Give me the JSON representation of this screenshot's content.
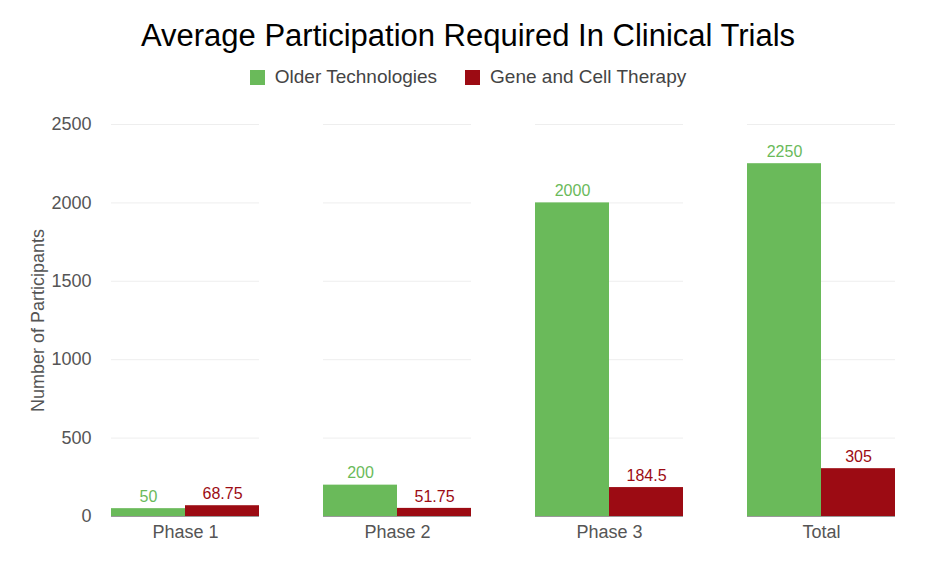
{
  "chart_data": {
    "type": "bar",
    "title": "Average Participation Required In Clinical Trials",
    "ylabel": "Number of Participants",
    "categories": [
      "Phase 1",
      "Phase 2",
      "Phase 3",
      "Total"
    ],
    "series": [
      {
        "name": "Older Technologies",
        "color": "#6aba5a",
        "values": [
          50,
          200,
          2000,
          2250
        ]
      },
      {
        "name": "Gene and Cell Therapy",
        "color": "#9c0b13",
        "values": [
          68.75,
          51.75,
          184.5,
          305
        ]
      }
    ],
    "ylim": [
      0,
      2500
    ],
    "yticks": [
      0,
      500,
      1000,
      1500,
      2000,
      2500
    ],
    "grid": true,
    "legend": "top",
    "data_labels": true
  }
}
